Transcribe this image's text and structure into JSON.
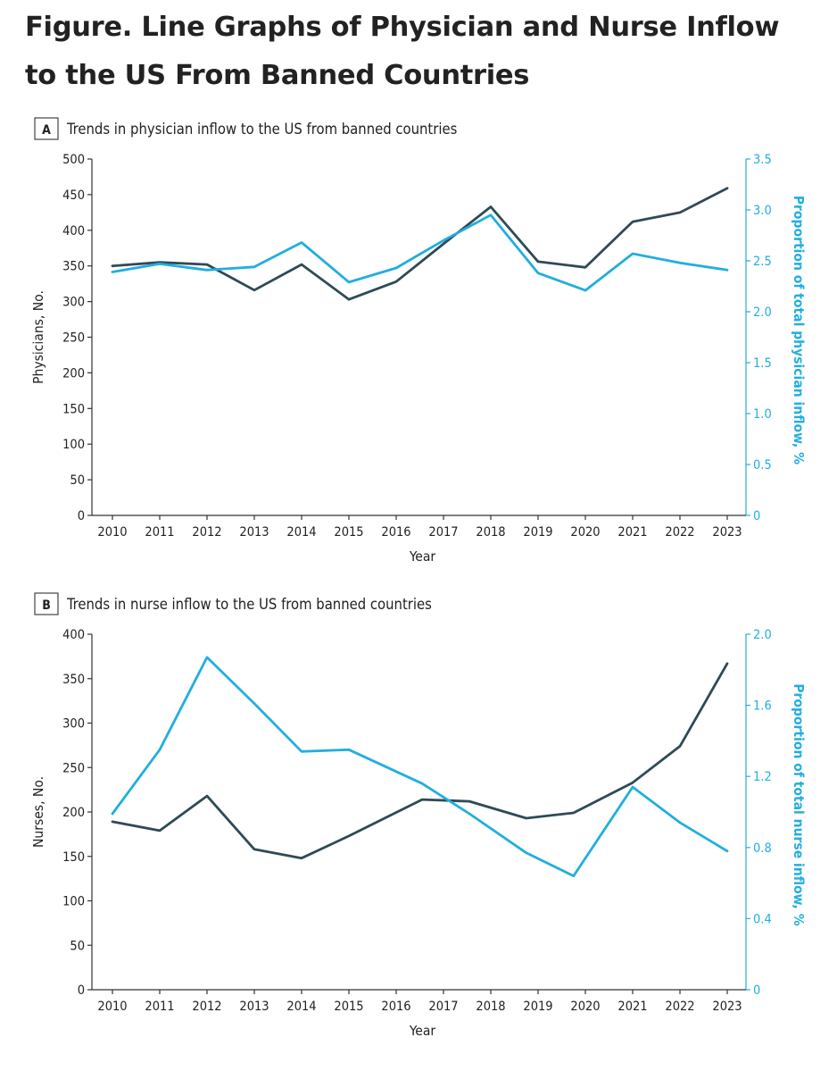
{
  "figure_title": "Figure.  Line Graphs of Physician and Nurse Inflow to the US From Banned Countries",
  "colors": {
    "count_line": "#2e4a57",
    "proportion_line": "#22aede",
    "axis": "#333333"
  },
  "chart_data": [
    {
      "type": "line",
      "panel_label": "A",
      "title": "Trends in physician inflow to the US from banned countries",
      "xlabel": "Year",
      "ylabel": "Physicians, No.",
      "y2label": "Proportion of total physician inflow, %",
      "x": [
        2010,
        2011,
        2012,
        2013,
        2014,
        2015,
        2016,
        2017,
        2018,
        2019,
        2020,
        2021,
        2022,
        2023
      ],
      "ylim": [
        0,
        500
      ],
      "y_ticks": [
        "0",
        "50",
        "100",
        "150",
        "200",
        "250",
        "300",
        "350",
        "400",
        "450",
        "500"
      ],
      "y2lim": [
        0,
        3.5
      ],
      "y2_ticks": [
        "0",
        "0.5",
        "1.0",
        "1.5",
        "2.0",
        "2.5",
        "3.0",
        "3.5"
      ],
      "grid": false,
      "series": [
        {
          "axis": "left",
          "color": "#2e4a57",
          "values": [
            350,
            355,
            352,
            316,
            352,
            303,
            328,
            381,
            433,
            356,
            348,
            412,
            425,
            459
          ]
        },
        {
          "axis": "right",
          "color": "#22aede",
          "values": [
            2.39,
            2.47,
            2.41,
            2.44,
            2.68,
            2.29,
            2.43,
            2.7,
            2.95,
            2.38,
            2.21,
            2.57,
            2.48,
            2.41
          ]
        }
      ]
    },
    {
      "type": "line",
      "panel_label": "B",
      "title": "Trends in nurse inflow to the US from banned countries",
      "xlabel": "Year",
      "ylabel": "Nurses, No.",
      "y2label": "Proportion of total nurse inflow, %",
      "x": [
        2010,
        2011,
        2012,
        2013,
        2014,
        2015,
        2016,
        2017,
        2018,
        2019,
        2020,
        2021,
        2022,
        2023
      ],
      "ylim": [
        0,
        400
      ],
      "y_ticks": [
        "0",
        "50",
        "100",
        "150",
        "200",
        "250",
        "300",
        "350",
        "400"
      ],
      "y2lim": [
        0,
        2.0
      ],
      "y2_ticks": [
        "0",
        "0.4",
        "0.8",
        "1.2",
        "1.6",
        "2.0"
      ],
      "grid": false,
      "series": [
        {
          "axis": "left",
          "color": "#2e4a57",
          "points": [
            [
              2010,
              189
            ],
            [
              2011,
              179
            ],
            [
              2012,
              218
            ],
            [
              2013,
              158
            ],
            [
              2014,
              148
            ],
            [
              2015,
              173
            ],
            [
              2016.55,
              214
            ],
            [
              2017.55,
              212
            ],
            [
              2018.75,
              193
            ],
            [
              2019.75,
              199
            ],
            [
              2021,
              233
            ],
            [
              2022,
              274
            ],
            [
              2023,
              367
            ]
          ]
        },
        {
          "axis": "right",
          "color": "#22aede",
          "points": [
            [
              2010,
              0.99
            ],
            [
              2011,
              1.35
            ],
            [
              2012,
              1.87
            ],
            [
              2013,
              1.61
            ],
            [
              2014,
              1.34
            ],
            [
              2015,
              1.35
            ],
            [
              2016.55,
              1.16
            ],
            [
              2017.55,
              0.99
            ],
            [
              2018.75,
              0.77
            ],
            [
              2019.75,
              0.64
            ],
            [
              2021,
              1.14
            ],
            [
              2022,
              0.94
            ],
            [
              2023,
              0.78
            ]
          ]
        }
      ]
    }
  ]
}
